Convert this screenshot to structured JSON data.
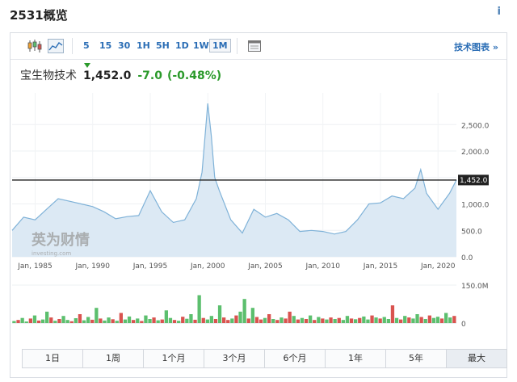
{
  "page_title": "2531概览",
  "toolbar": {
    "timeframes": [
      "5",
      "15",
      "30",
      "1H",
      "5H",
      "1D",
      "1W",
      "1M"
    ],
    "active_timeframe": "1M",
    "tech_chart_link": "技术图表 »"
  },
  "quote": {
    "name": "宝生物技术",
    "price": "1,452.0",
    "change": "-7.0",
    "change_pct": "(-0.48%)"
  },
  "watermark": {
    "brand": "英为财情",
    "site": "investing.com"
  },
  "current_price_label": "1,452.0",
  "range_tabs": [
    "1日",
    "1周",
    "1个月",
    "3个月",
    "6个月",
    "1年",
    "5年",
    "最大"
  ],
  "active_range": "最大",
  "colors": {
    "line": "#7fb2d8",
    "area": "#dce9f4",
    "up": "#5cbf6e",
    "down": "#d9534f",
    "link": "#2a6db5",
    "positive": "#2b9a2b"
  },
  "chart_data": [
    {
      "type": "area",
      "x_tick_labels": [
        "Jan, 1985",
        "Jan, 1990",
        "Jan, 1995",
        "Jan, 2000",
        "Jan, 2005",
        "Jan, 2010",
        "Jan, 2015",
        "Jan, 2020"
      ],
      "y_tick_labels": [
        "0.0",
        "500.0",
        "1,000.0",
        "1,500.0",
        "2,000.0",
        "2,500.0"
      ],
      "ylim": [
        0,
        3100
      ],
      "xlim": [
        1983.0,
        2021.6
      ],
      "horizontal_line": 1452.0,
      "series": [
        {
          "x": [
            1983.0,
            1984.0,
            1985.0,
            1986.0,
            1987.0,
            1988.0,
            1989.0,
            1990.0,
            1991.0,
            1992.0,
            1993.0,
            1994.0,
            1995.0,
            1996.0,
            1997.0,
            1998.0,
            1999.0,
            1999.5,
            2000.0,
            2000.3,
            2000.6,
            2001.0,
            2002.0,
            2003.0,
            2004.0,
            2005.0,
            2006.0,
            2007.0,
            2008.0,
            2009.0,
            2010.0,
            2011.0,
            2012.0,
            2013.0,
            2014.0,
            2015.0,
            2016.0,
            2017.0,
            2018.0,
            2018.5,
            2019.0,
            2020.0,
            2021.0,
            2021.6
          ],
          "y": [
            500,
            750,
            700,
            900,
            1100,
            1050,
            1000,
            950,
            850,
            720,
            760,
            780,
            1250,
            850,
            650,
            700,
            1100,
            1600,
            2900,
            2300,
            1500,
            1250,
            700,
            450,
            900,
            750,
            820,
            700,
            480,
            500,
            480,
            430,
            480,
            700,
            1000,
            1020,
            1150,
            1100,
            1300,
            1650,
            1200,
            900,
            1200,
            1452
          ]
        }
      ]
    },
    {
      "type": "bar",
      "y_tick_labels": [
        "0",
        "150.0M"
      ],
      "ylim_millions": [
        0,
        150
      ],
      "series": [
        {
          "name": "volume",
          "values_millions": [
            8,
            12,
            20,
            6,
            18,
            30,
            10,
            14,
            45,
            22,
            9,
            16,
            28,
            12,
            7,
            19,
            35,
            11,
            24,
            13,
            60,
            18,
            10,
            22,
            15,
            9,
            40,
            14,
            26,
            12,
            18,
            8,
            30,
            16,
            22,
            11,
            14,
            50,
            20,
            12,
            9,
            25,
            17,
            35,
            13,
            110,
            20,
            14,
            28,
            16,
            70,
            22,
            12,
            18,
            30,
            45,
            95,
            18,
            60,
            24,
            14,
            20,
            35,
            16,
            12,
            22,
            18,
            45,
            28,
            14,
            20,
            16,
            30,
            12,
            24,
            18,
            14,
            22,
            16,
            20,
            12,
            28,
            18,
            15,
            20,
            26,
            14,
            30,
            22,
            18,
            24,
            16,
            70,
            20,
            14,
            28,
            22,
            18,
            35,
            24,
            16,
            30,
            20,
            25,
            18,
            40,
            22,
            28
          ],
          "directions": [
            "up",
            "down",
            "up",
            "up",
            "down",
            "up",
            "down",
            "up",
            "up",
            "down",
            "up",
            "down",
            "up",
            "up",
            "down",
            "up",
            "down",
            "up",
            "up",
            "down",
            "up",
            "down",
            "up",
            "up",
            "down",
            "up",
            "down",
            "up",
            "up",
            "down",
            "up",
            "down",
            "up",
            "up",
            "down",
            "up",
            "down",
            "up",
            "up",
            "down",
            "up",
            "down",
            "up",
            "up",
            "down",
            "up",
            "down",
            "up",
            "up",
            "down",
            "up",
            "down",
            "down",
            "up",
            "down",
            "up",
            "up",
            "down",
            "up",
            "down",
            "down",
            "up",
            "down",
            "up",
            "down",
            "up",
            "down",
            "down",
            "up",
            "down",
            "up",
            "down",
            "up",
            "down",
            "up",
            "down",
            "up",
            "down",
            "up",
            "down",
            "up",
            "up",
            "down",
            "up",
            "down",
            "up",
            "up",
            "down",
            "up",
            "down",
            "up",
            "up",
            "down",
            "up",
            "down",
            "up",
            "down",
            "up",
            "up",
            "down",
            "up",
            "down",
            "up",
            "up",
            "down",
            "up",
            "up",
            "down"
          ]
        }
      ]
    }
  ]
}
